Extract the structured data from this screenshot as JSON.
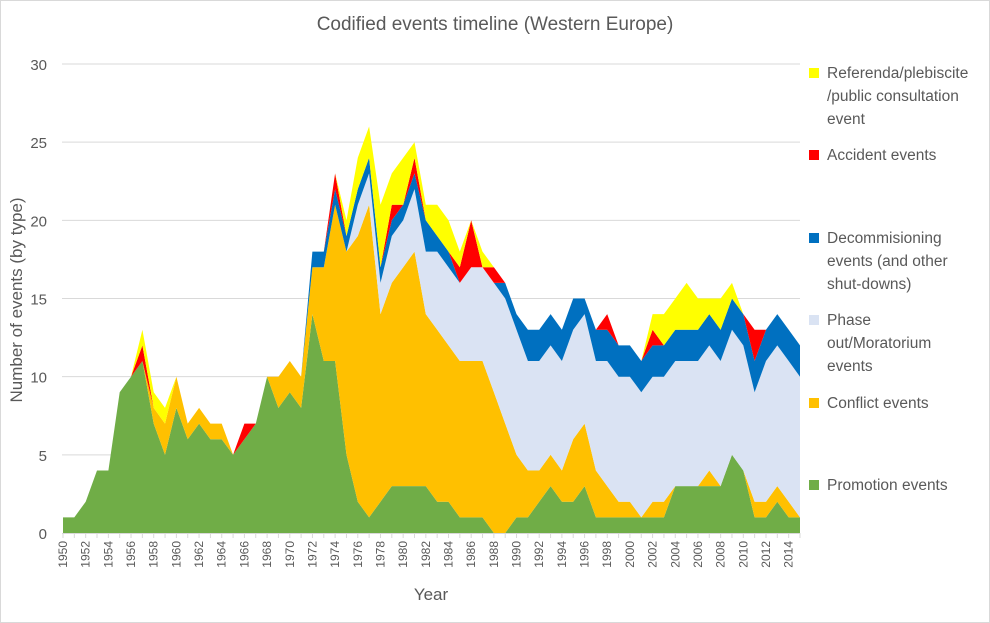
{
  "chart_data": {
    "type": "area",
    "stacked": true,
    "title": "Codified events timeline (Western Europe)",
    "xlabel": "Year",
    "ylabel": "Number of events (by type)",
    "ylim": [
      0,
      30
    ],
    "yticks": [
      0,
      5,
      10,
      15,
      20,
      25,
      30
    ],
    "xlim": [
      1950,
      2015
    ],
    "xtick_labels": [
      "1950",
      "1952",
      "1954",
      "1956",
      "1958",
      "1960",
      "1962",
      "1964",
      "1966",
      "1968",
      "1970",
      "1972",
      "1974",
      "1976",
      "1978",
      "1980",
      "1982",
      "1984",
      "1986",
      "1988",
      "1990",
      "1992",
      "1994",
      "1996",
      "1998",
      "2000",
      "2002",
      "2004",
      "2006",
      "2008",
      "2010",
      "2012",
      "2014"
    ],
    "grid": true,
    "legend_position": "right",
    "x": [
      1950,
      1951,
      1952,
      1953,
      1954,
      1955,
      1956,
      1957,
      1958,
      1959,
      1960,
      1961,
      1962,
      1963,
      1964,
      1965,
      1966,
      1967,
      1968,
      1969,
      1970,
      1971,
      1972,
      1973,
      1974,
      1975,
      1976,
      1977,
      1978,
      1979,
      1980,
      1981,
      1982,
      1983,
      1984,
      1985,
      1986,
      1987,
      1988,
      1989,
      1990,
      1991,
      1992,
      1993,
      1994,
      1995,
      1996,
      1997,
      1998,
      1999,
      2000,
      2001,
      2002,
      2003,
      2004,
      2005,
      2006,
      2007,
      2008,
      2009,
      2010,
      2011,
      2012,
      2013,
      2014,
      2015
    ],
    "series": [
      {
        "name": "Promotion events",
        "color": "#70ad47",
        "values": [
          1,
          1,
          2,
          4,
          4,
          9,
          10,
          11,
          7,
          5,
          8,
          6,
          7,
          6,
          6,
          5,
          6,
          7,
          10,
          8,
          9,
          8,
          14,
          11,
          11,
          5,
          2,
          1,
          2,
          3,
          3,
          3,
          3,
          2,
          2,
          1,
          1,
          1,
          0,
          0,
          1,
          1,
          2,
          3,
          2,
          2,
          3,
          1,
          1,
          1,
          1,
          1,
          1,
          1,
          3,
          3,
          3,
          3,
          3,
          5,
          4,
          1,
          1,
          2,
          1,
          1
        ]
      },
      {
        "name": "Conflict events",
        "color": "#ffc000",
        "values": [
          0,
          0,
          0,
          0,
          0,
          0,
          0,
          0,
          1,
          2,
          2,
          1,
          1,
          1,
          1,
          0,
          0,
          0,
          0,
          2,
          2,
          2,
          3,
          6,
          10,
          13,
          17,
          20,
          12,
          13,
          14,
          15,
          11,
          11,
          10,
          10,
          10,
          10,
          9,
          7,
          4,
          3,
          2,
          2,
          2,
          4,
          4,
          3,
          2,
          1,
          1,
          0,
          1,
          1,
          0,
          0,
          0,
          1,
          0,
          0,
          0,
          1,
          1,
          1,
          1,
          0
        ]
      },
      {
        "name": "Phase out/Moratorium events",
        "color": "#dae3f3",
        "values": [
          0,
          0,
          0,
          0,
          0,
          0,
          0,
          0,
          0,
          0,
          0,
          0,
          0,
          0,
          0,
          0,
          0,
          0,
          0,
          0,
          0,
          0,
          0,
          0,
          0,
          0,
          2,
          2,
          2,
          3,
          3,
          4,
          4,
          5,
          5,
          5,
          6,
          6,
          7,
          8,
          8,
          7,
          7,
          7,
          7,
          7,
          7,
          7,
          8,
          8,
          8,
          8,
          8,
          8,
          8,
          8,
          8,
          8,
          8,
          8,
          8,
          7,
          9,
          9,
          9,
          9
        ]
      },
      {
        "name": "Decommisioning events (and other shut-downs)",
        "color": "#0070c0",
        "values": [
          0,
          0,
          0,
          0,
          0,
          0,
          0,
          0,
          0,
          0,
          0,
          0,
          0,
          0,
          0,
          0,
          0,
          0,
          0,
          0,
          0,
          0,
          1,
          1,
          1,
          1,
          1,
          1,
          1,
          1,
          1,
          1,
          2,
          1,
          1,
          0,
          0,
          0,
          0,
          1,
          1,
          2,
          2,
          2,
          2,
          2,
          1,
          2,
          2,
          2,
          2,
          2,
          2,
          2,
          2,
          2,
          2,
          2,
          2,
          2,
          2,
          2,
          2,
          2,
          2,
          2
        ]
      },
      {
        "name": "Accident events",
        "color": "#ff0000",
        "values": [
          0,
          0,
          0,
          0,
          0,
          0,
          0,
          1,
          0,
          0,
          0,
          0,
          0,
          0,
          0,
          0,
          1,
          0,
          0,
          0,
          0,
          0,
          0,
          0,
          1,
          0,
          0,
          0,
          0,
          1,
          0,
          1,
          0,
          0,
          0,
          1,
          3,
          0,
          1,
          0,
          0,
          0,
          0,
          0,
          0,
          0,
          0,
          0,
          1,
          0,
          0,
          0,
          1,
          0,
          0,
          0,
          0,
          0,
          0,
          0,
          0,
          2,
          0,
          0,
          0,
          0
        ]
      },
      {
        "name": "Referenda/plebiscite /public consultation event",
        "color": "#ffff00",
        "values": [
          0,
          0,
          0,
          0,
          0,
          0,
          0,
          1,
          1,
          1,
          0,
          0,
          0,
          0,
          0,
          0,
          0,
          0,
          0,
          0,
          0,
          0,
          0,
          0,
          0,
          1,
          2,
          2,
          4,
          2,
          3,
          1,
          1,
          2,
          2,
          1,
          0,
          1,
          0,
          0,
          0,
          0,
          0,
          0,
          0,
          0,
          0,
          0,
          0,
          0,
          0,
          0,
          1,
          2,
          2,
          3,
          2,
          1,
          2,
          1,
          0,
          0,
          0,
          0,
          0,
          0
        ]
      }
    ],
    "legend_order": [
      {
        "label_lines": [
          "Referenda/plebiscite",
          "/public consultation",
          "event"
        ],
        "color": "#ffff00"
      },
      {
        "label_lines": [
          "Accident events"
        ],
        "color": "#ff0000"
      },
      {
        "label_lines": [
          "Decommisioning",
          "events (and other",
          "shut-downs)"
        ],
        "color": "#0070c0"
      },
      {
        "label_lines": [
          "Phase",
          "out/Moratorium",
          "events"
        ],
        "color": "#dae3f3"
      },
      {
        "label_lines": [
          "Conflict events"
        ],
        "color": "#ffc000"
      },
      {
        "label_lines": [
          "Promotion events"
        ],
        "color": "#70ad47"
      }
    ]
  }
}
